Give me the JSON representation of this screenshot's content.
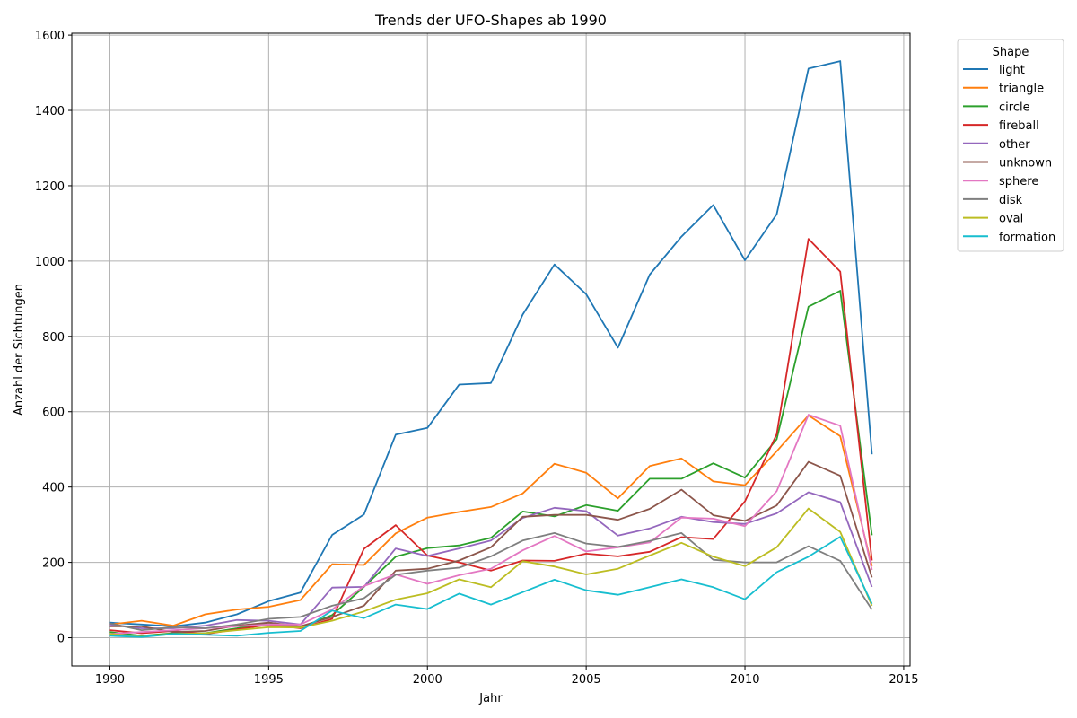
{
  "chart_data": {
    "type": "line",
    "title": "Trends der UFO-Shapes ab 1990",
    "xlabel": "Jahr",
    "ylabel": "Anzahl der Sichtungen",
    "xlim": [
      1988.8,
      2015.2
    ],
    "ylim": [
      -75,
      1605
    ],
    "xticks": [
      1990,
      1995,
      2000,
      2005,
      2010,
      2015
    ],
    "yticks": [
      0,
      200,
      400,
      600,
      800,
      1000,
      1200,
      1400,
      1600
    ],
    "grid": true,
    "legend": {
      "title": "Shape",
      "placement": "outside-top-right"
    },
    "x": [
      1990,
      1991,
      1992,
      1993,
      1994,
      1995,
      1996,
      1997,
      1998,
      1999,
      2000,
      2001,
      2002,
      2003,
      2004,
      2005,
      2006,
      2007,
      2008,
      2009,
      2010,
      2011,
      2012,
      2013,
      2014
    ],
    "series": [
      {
        "name": "light",
        "color": "#1f77b4",
        "values": [
          40,
          35,
          30,
          40,
          62,
          97,
          120,
          273,
          327,
          539,
          557,
          672,
          676,
          858,
          991,
          912,
          770,
          964,
          1065,
          1149,
          1002,
          1124,
          1511,
          1531,
          487
        ]
      },
      {
        "name": "triangle",
        "color": "#ff7f0e",
        "values": [
          35,
          45,
          32,
          62,
          75,
          82,
          100,
          195,
          193,
          277,
          319,
          334,
          347,
          383,
          462,
          438,
          370,
          456,
          476,
          415,
          405,
          495,
          590,
          535,
          190
        ]
      },
      {
        "name": "circle",
        "color": "#2ca02c",
        "values": [
          15,
          5,
          12,
          12,
          25,
          40,
          27,
          60,
          135,
          215,
          238,
          245,
          265,
          335,
          322,
          352,
          337,
          422,
          422,
          463,
          425,
          527,
          879,
          921,
          272
        ]
      },
      {
        "name": "fireball",
        "color": "#d62728",
        "values": [
          20,
          12,
          18,
          10,
          22,
          35,
          25,
          50,
          236,
          299,
          218,
          200,
          178,
          205,
          204,
          223,
          216,
          228,
          267,
          262,
          362,
          540,
          1059,
          972,
          205
        ]
      },
      {
        "name": "other",
        "color": "#9467bd",
        "values": [
          35,
          25,
          25,
          32,
          47,
          45,
          35,
          133,
          135,
          237,
          217,
          237,
          258,
          318,
          345,
          336,
          271,
          290,
          321,
          307,
          302,
          330,
          386,
          360,
          135
        ]
      },
      {
        "name": "unknown",
        "color": "#8c564b",
        "values": [
          30,
          30,
          15,
          18,
          32,
          40,
          30,
          55,
          85,
          178,
          183,
          205,
          240,
          321,
          326,
          326,
          313,
          342,
          393,
          325,
          310,
          351,
          467,
          430,
          160
        ]
      },
      {
        "name": "sphere",
        "color": "#e377c2",
        "values": [
          10,
          15,
          20,
          25,
          30,
          35,
          35,
          75,
          137,
          168,
          143,
          166,
          183,
          232,
          270,
          229,
          240,
          253,
          319,
          316,
          296,
          389,
          592,
          563,
          180
        ]
      },
      {
        "name": "disk",
        "color": "#7f7f7f",
        "values": [
          38,
          20,
          28,
          25,
          35,
          50,
          55,
          85,
          105,
          167,
          178,
          186,
          216,
          258,
          278,
          250,
          241,
          257,
          278,
          207,
          200,
          200,
          243,
          204,
          75
        ]
      },
      {
        "name": "oval",
        "color": "#bcbd22",
        "values": [
          10,
          3,
          10,
          12,
          20,
          28,
          27,
          45,
          70,
          101,
          118,
          155,
          134,
          203,
          189,
          168,
          183,
          218,
          252,
          215,
          190,
          240,
          343,
          281,
          85
        ]
      },
      {
        "name": "formation",
        "color": "#17becf",
        "values": [
          5,
          2,
          10,
          8,
          5,
          13,
          18,
          72,
          52,
          88,
          76,
          117,
          88,
          121,
          154,
          126,
          114,
          134,
          155,
          134,
          102,
          174,
          215,
          268,
          90
        ]
      }
    ]
  }
}
